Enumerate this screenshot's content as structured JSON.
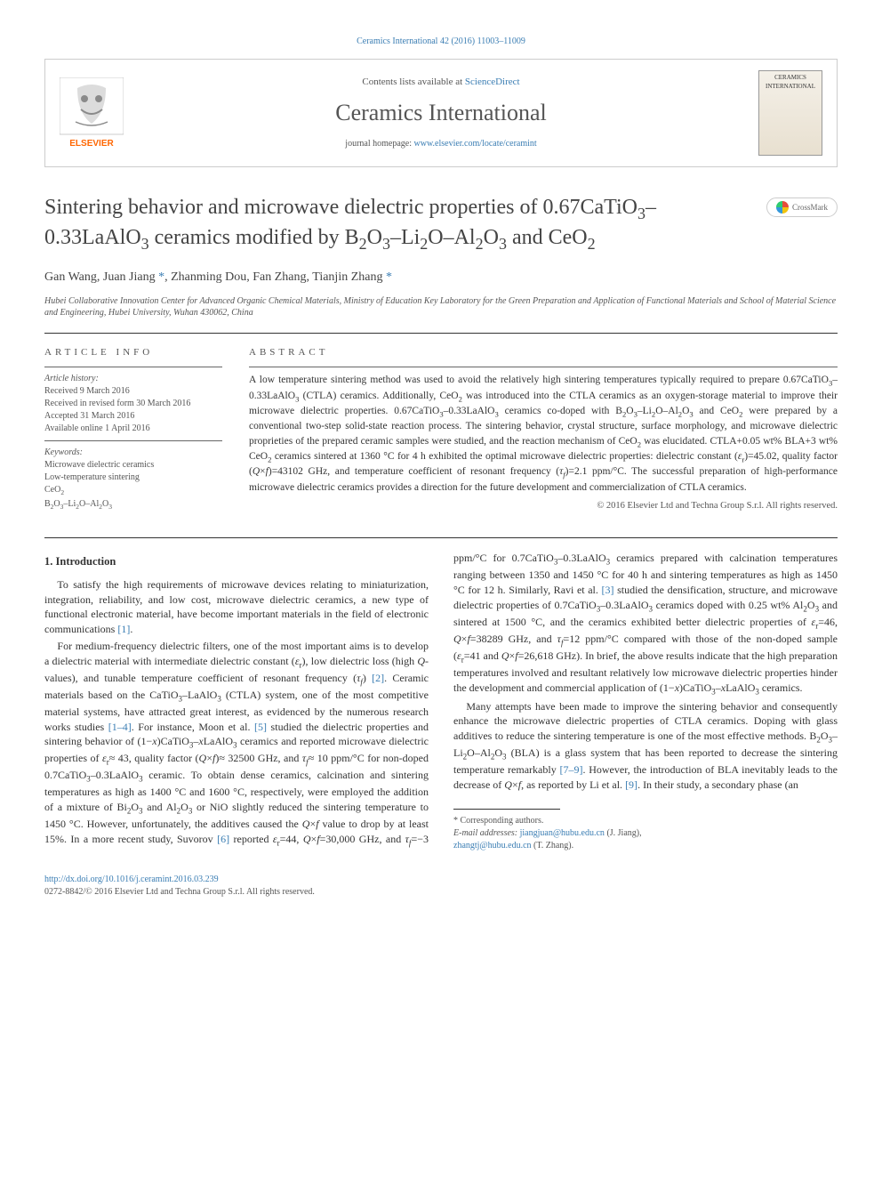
{
  "top_citation": "Ceramics International 42 (2016) 11003–11009",
  "header": {
    "contents_prefix": "Contents lists available at ",
    "contents_link": "ScienceDirect",
    "journal_name": "Ceramics International",
    "homepage_prefix": "journal homepage: ",
    "homepage_link": "www.elsevier.com/locate/ceramint",
    "publisher": "ELSEVIER",
    "cover_text": "CERAMICS INTERNATIONAL"
  },
  "crossmark_label": "CrossMark",
  "title_html": "Sintering behavior and microwave dielectric properties of 0.67CaTiO<sub>3</sub>–0.33LaAlO<sub>3</sub> ceramics modified by B<sub>2</sub>O<sub>3</sub>–Li<sub>2</sub>O–Al<sub>2</sub>O<sub>3</sub> and CeO<sub>2</sub>",
  "authors_html": "Gan Wang, Juan Jiang <a href=\"#\">*</a>, Zhanming Dou, Fan Zhang, Tianjin Zhang <a href=\"#\">*</a>",
  "affiliation": "Hubei Collaborative Innovation Center for Advanced Organic Chemical Materials, Ministry of Education Key Laboratory for the Green Preparation and Application of Functional Materials and School of Material Science and Engineering, Hubei University, Wuhan 430062, China",
  "article_info": {
    "heading": "ARTICLE INFO",
    "history_label": "Article history:",
    "history": [
      "Received 9 March 2016",
      "Received in revised form 30 March 2016",
      "Accepted 31 March 2016",
      "Available online 1 April 2016"
    ],
    "keywords_label": "Keywords:",
    "keywords_html": [
      "Microwave dielectric ceramics",
      "Low-temperature sintering",
      "CeO<sub>2</sub>",
      "B<sub>2</sub>O<sub>3</sub>–Li<sub>2</sub>O–Al<sub>2</sub>O<sub>3</sub>"
    ]
  },
  "abstract": {
    "heading": "ABSTRACT",
    "text_html": "A low temperature sintering method was used to avoid the relatively high sintering temperatures typically required to prepare 0.67CaTiO<sub>3</sub>–0.33LaAlO<sub>3</sub> (CTLA) ceramics. Additionally, CeO<sub>2</sub> was introduced into the CTLA ceramics as an oxygen-storage material to improve their microwave dielectric properties. 0.67CaTiO<sub>3</sub>–0.33LaAlO<sub>3</sub> ceramics co-doped with B<sub>2</sub>O<sub>3</sub>–Li<sub>2</sub>O–Al<sub>2</sub>O<sub>3</sub> and CeO<sub>2</sub> were prepared by a conventional two-step solid-state reaction process. The sintering behavior, crystal structure, surface morphology, and microwave dielectric proprieties of the prepared ceramic samples were studied, and the reaction mechanism of CeO<sub>2</sub> was elucidated. CTLA+0.05 wt% BLA+3 wt% CeO<sub>2</sub> ceramics sintered at 1360 °C for 4 h exhibited the optimal microwave dielectric properties: dielectric constant (<i>ε</i><sub>r</sub>)=45.02, quality factor (<i>Q</i>×<i>f</i>)=43102 GHz, and temperature coefficient of resonant frequency (<i>τ<sub>f</sub></i>)=2.1 ppm/°C. The successful preparation of high-performance microwave dielectric ceramics provides a direction for the future development and commercialization of CTLA ceramics.",
    "copyright": "© 2016 Elsevier Ltd and Techna Group S.r.l. All rights reserved."
  },
  "intro": {
    "heading": "1.  Introduction",
    "paragraphs_html": [
      "To satisfy the high requirements of microwave devices relating to miniaturization, integration, reliability, and low cost, microwave dielectric ceramics, a new type of functional electronic material, have become important materials in the field of electronic communications <span class=\"ref-link\">[1]</span>.",
      "For medium-frequency dielectric filters, one of the most important aims is to develop a dielectric material with intermediate dielectric constant (<i>ε</i><sub>r</sub>), low dielectric loss (high <i>Q</i>-values), and tunable temperature coefficient of resonant frequency (<i>τ<sub>f</sub></i>) <span class=\"ref-link\">[2]</span>. Ceramic materials based on the CaTiO<sub>3</sub>–LaAlO<sub>3</sub> (CTLA) system, one of the most competitive material systems, have attracted great interest, as evidenced by the numerous research works studies <span class=\"ref-link\">[1–4]</span>. For instance, Moon et al. <span class=\"ref-link\">[5]</span> studied the dielectric properties and sintering behavior of (1−<i>x</i>)CaTiO<sub>3</sub>–<i>x</i>LaAlO<sub>3</sub> ceramics and reported microwave dielectric properties of <i>ε</i><sub>r</sub>≈ 43, quality factor (<i>Q</i>×<i>f</i>)≈ 32500 GHz, and <i>τ<sub>f</sub></i>≈ 10 ppm/°C for non-doped 0.7CaTiO<sub>3</sub>–0.3LaAlO<sub>3</sub> ceramic. To obtain dense ceramics, calcination and sintering temperatures as high as 1400 °C and 1600 °C, respectively, were employed the addition of a mixture of Bi<sub>2</sub>O<sub>3</sub> and Al<sub>2</sub>O<sub>3</sub> or NiO slightly reduced the sintering temperature to 1450 °C. However, unfortunately, the additives caused the <i>Q</i>×<i>f</i> value to drop by at least 15%. In a more recent study, Suvorov <span class=\"ref-link\">[6]</span> reported <i>ε</i><sub>r</sub>=44, <i>Q</i>×<i>f</i>=30,000 GHz, and <i>τ<sub>f</sub></i>=−3 ppm/°C for 0.7CaTiO<sub>3</sub>–0.3LaAlO<sub>3</sub> ceramics prepared with calcination temperatures ranging between 1350 and 1450 °C for 40 h and sintering temperatures as high as 1450 °C for 12 h. Similarly, Ravi et al. <span class=\"ref-link\">[3]</span> studied the densification, structure, and microwave dielectric properties of 0.7CaTiO<sub>3</sub>–0.3LaAlO<sub>3</sub> ceramics doped with 0.25 wt% Al<sub>2</sub>O<sub>3</sub> and sintered at 1500 °C, and the ceramics exhibited better dielectric properties of <i>ε</i><sub>r</sub>=46, <i>Q</i>×<i>f</i>=38289 GHz, and <i>τ<sub>f</sub></i>=12 ppm/°C compared with those of the non-doped sample (<i>ε</i><sub>r</sub>=41 and <i>Q</i>×<i>f</i>=26,618 GHz). In brief, the above results indicate that the high preparation temperatures involved and resultant relatively low microwave dielectric properties hinder the development and commercial application of (1−<i>x</i>)CaTiO<sub>3</sub>–<i>x</i>LaAlO<sub>3</sub> ceramics.",
      "Many attempts have been made to improve the sintering behavior and consequently enhance the microwave dielectric properties of CTLA ceramics. Doping with glass additives to reduce the sintering temperature is one of the most effective methods. B<sub>2</sub>O<sub>3</sub>–Li<sub>2</sub>O–Al<sub>2</sub>O<sub>3</sub> (BLA) is a glass system that has been reported to decrease the sintering temperature remarkably <span class=\"ref-link\">[7–9]</span>. However, the introduction of BLA inevitably leads to the decrease of <i>Q</i>×<i>f</i>, as reported by Li et al. <span class=\"ref-link\">[9]</span>. In their study, a secondary phase (an"
    ]
  },
  "footnote": {
    "corr_label": "* Corresponding authors.",
    "email_label": "E-mail addresses: ",
    "emails": [
      {
        "addr": "jiangjuan@hubu.edu.cn",
        "name": " (J. Jiang),"
      },
      {
        "addr": "zhangtj@hubu.edu.cn",
        "name": " (T. Zhang)."
      }
    ]
  },
  "footer": {
    "doi": "http://dx.doi.org/10.1016/j.ceramint.2016.03.239",
    "issn_line": "0272-8842/© 2016 Elsevier Ltd and Techna Group S.r.l. All rights reserved."
  },
  "colors": {
    "link": "#3a7db3",
    "text": "#333333",
    "muted": "#555555",
    "elsevier_orange": "#ff6600",
    "elsevier_gray": "#8a8a8a"
  }
}
